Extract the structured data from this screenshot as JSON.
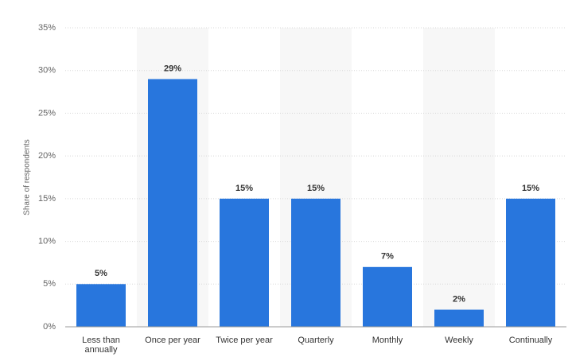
{
  "chart_data": {
    "type": "bar",
    "y_axis_label": "Share of respondents",
    "categories": [
      "Less than annually",
      "Once per year",
      "Twice per year",
      "Quarterly",
      "Monthly",
      "Weekly",
      "Continually"
    ],
    "values": [
      5,
      29,
      15,
      15,
      7,
      2,
      15
    ],
    "value_labels": [
      "5%",
      "29%",
      "15%",
      "15%",
      "7%",
      "2%",
      "15%"
    ],
    "color": "#2876dd",
    "ylim": [
      0,
      35
    ],
    "yticks": [
      {
        "value": 0,
        "label": "0%"
      },
      {
        "value": 5,
        "label": "5%"
      },
      {
        "value": 10,
        "label": "10%"
      },
      {
        "value": 15,
        "label": "15%"
      },
      {
        "value": 20,
        "label": "20%"
      },
      {
        "value": 25,
        "label": "25%"
      },
      {
        "value": 30,
        "label": "30%"
      },
      {
        "value": 35,
        "label": "35%"
      }
    ],
    "grid": true
  }
}
